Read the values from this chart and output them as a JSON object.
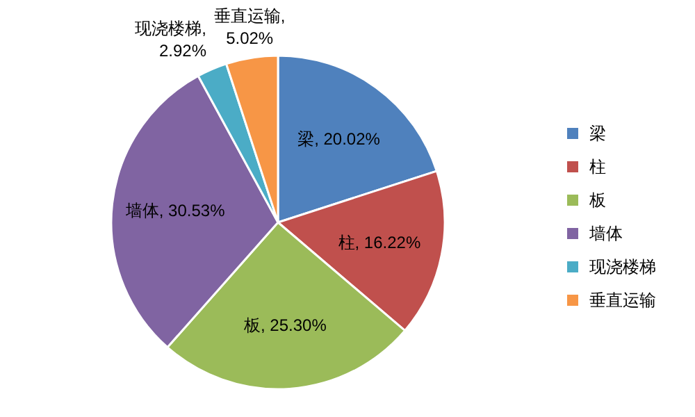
{
  "chart_data": {
    "type": "pie",
    "categories": [
      "梁",
      "柱",
      "板",
      "墙体",
      "现浇楼梯",
      "垂直运输"
    ],
    "values": [
      20.02,
      16.22,
      25.3,
      30.53,
      2.92,
      5.02
    ],
    "colors": [
      "#4f81bd",
      "#c0504d",
      "#9bbb59",
      "#8064a2",
      "#4bacc6",
      "#f79646"
    ],
    "value_labels": [
      "梁, 20.02%",
      "柱, 16.22%",
      "板, 25.30%",
      "墙体, 30.53%",
      "现浇楼梯,\n2.92%",
      "垂直运输,\n5.02%"
    ],
    "legend": "right"
  }
}
